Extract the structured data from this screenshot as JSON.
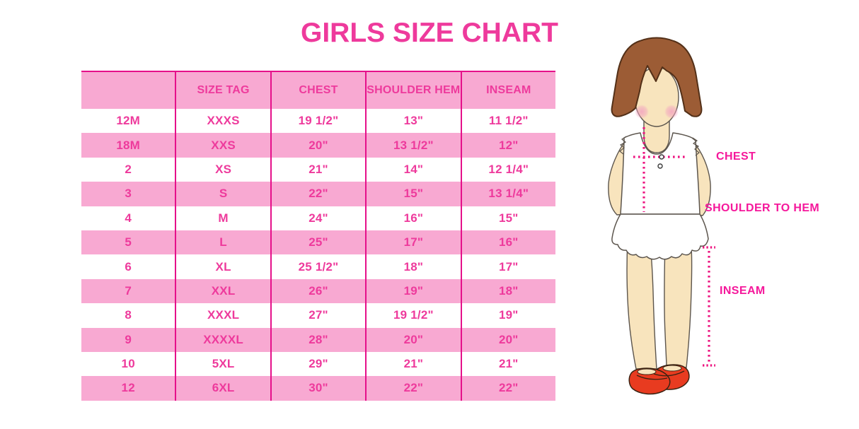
{
  "page": {
    "title": "GIRLS SIZE CHART"
  },
  "colors": {
    "accent": "#ee3a9c",
    "line": "#e5108a",
    "pink": "#f8a9d2",
    "label": "#f5189b",
    "dotline": "#ed1580",
    "skin": "#f8e4bd",
    "hair": "#9c5c35",
    "hairline": "#533018",
    "outline": "#5c554d",
    "shoe": "#e83b20",
    "cheek": "#f2a2c0"
  },
  "chart_data": {
    "type": "table",
    "title": "GIRLS SIZE CHART",
    "columns": [
      "",
      "SIZE TAG",
      "CHEST",
      "SHOULDER HEM",
      "INSEAM"
    ],
    "rows": [
      [
        "12M",
        "XXXS",
        "19 1/2\"",
        "13\"",
        "11 1/2\""
      ],
      [
        "18M",
        "XXS",
        "20\"",
        "13 1/2\"",
        "12\""
      ],
      [
        "2",
        "XS",
        "21\"",
        "14\"",
        "12 1/4\""
      ],
      [
        "3",
        "S",
        "22\"",
        "15\"",
        "13 1/4\""
      ],
      [
        "4",
        "M",
        "24\"",
        "16\"",
        "15\""
      ],
      [
        "5",
        "L",
        "25\"",
        "17\"",
        "16\""
      ],
      [
        "6",
        "XL",
        "25 1/2\"",
        "18\"",
        "17\""
      ],
      [
        "7",
        "XXL",
        "26\"",
        "19\"",
        "18\""
      ],
      [
        "8",
        "XXXL",
        "27\"",
        "19 1/2\"",
        "19\""
      ],
      [
        "9",
        "XXXXL",
        "28\"",
        "20\"",
        "20\""
      ],
      [
        "10",
        "5XL",
        "29\"",
        "21\"",
        "21\""
      ],
      [
        "12",
        "6XL",
        "30\"",
        "22\"",
        "22\""
      ]
    ],
    "layout": {
      "row_striping": "header pink, then alternating white/pink",
      "grid": "vertical magenta separators and top border only"
    }
  },
  "measurement_guide": {
    "labels": [
      {
        "id": "chest",
        "text": "CHEST"
      },
      {
        "id": "shoulder-to-hem",
        "text": "SHOULDER TO HEM"
      },
      {
        "id": "inseam",
        "text": "INSEAM"
      }
    ]
  }
}
